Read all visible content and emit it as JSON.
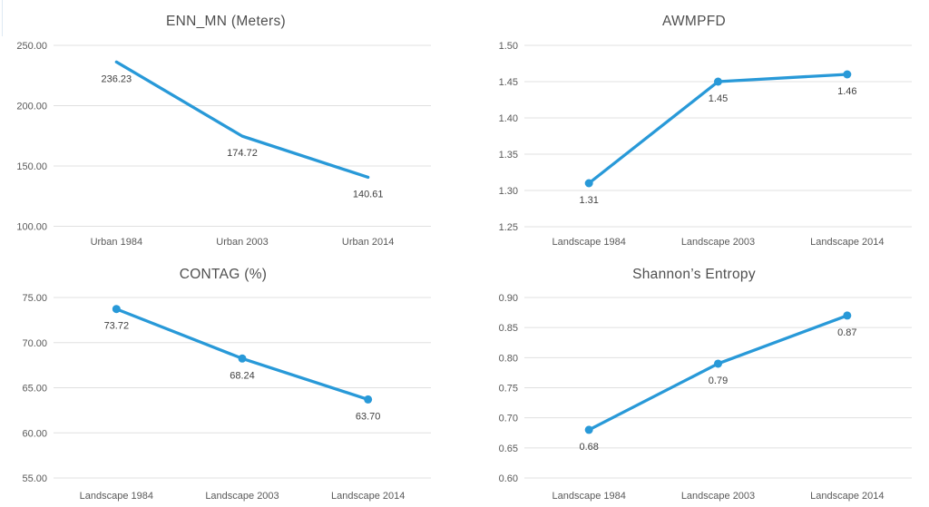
{
  "page": {
    "background": "#ffffff",
    "description_layout": "2x2 grid of line charts"
  },
  "colors": {
    "accent_line": "#2899D8",
    "marker_fill": "#2899D8",
    "gridline": "#E0E0E0",
    "tick_text": "#595959",
    "data_label_text": "#404040",
    "title_text": "#4F4F4F",
    "edge_artifact_blue": "#D6E4F0"
  },
  "chart_data": [
    {
      "type": "line",
      "title": "ENN_MN (Meters)",
      "categories": [
        "Urban 1984",
        "Urban 2003",
        "Urban 2014"
      ],
      "values": [
        236.23,
        174.72,
        140.61
      ],
      "data_labels": [
        "236.23",
        "174.72",
        "140.61"
      ],
      "ylim": [
        100,
        250
      ],
      "yticks": [
        "100.00",
        "150.00",
        "200.00",
        "250.00"
      ],
      "markers": false,
      "grid": true,
      "legend": "none",
      "xlabel": "",
      "ylabel": ""
    },
    {
      "type": "line",
      "title": "AWMPFD",
      "categories": [
        "Landscape 1984",
        "Landscape 2003",
        "Landscape 2014"
      ],
      "values": [
        1.31,
        1.45,
        1.46
      ],
      "data_labels": [
        "1.31",
        "1.45",
        "1.46"
      ],
      "ylim": [
        1.25,
        1.5
      ],
      "yticks": [
        "1.25",
        "1.30",
        "1.35",
        "1.40",
        "1.45",
        "1.50"
      ],
      "markers": true,
      "grid": true,
      "legend": "none",
      "xlabel": "",
      "ylabel": ""
    },
    {
      "type": "line",
      "title": "CONTAG (%)",
      "categories": [
        "Landscape 1984",
        "Landscape 2003",
        "Landscape 2014"
      ],
      "values": [
        73.72,
        68.24,
        63.7
      ],
      "data_labels": [
        "73.72",
        "68.24",
        "63.70"
      ],
      "ylim": [
        55,
        75
      ],
      "yticks": [
        "55.00",
        "60.00",
        "65.00",
        "70.00",
        "75.00"
      ],
      "markers": true,
      "grid": true,
      "legend": "none",
      "xlabel": "",
      "ylabel": ""
    },
    {
      "type": "line",
      "title": "Shannon’s Entropy",
      "categories": [
        "Landscape 1984",
        "Landscape 2003",
        "Landscape 2014"
      ],
      "values": [
        0.68,
        0.79,
        0.87
      ],
      "data_labels": [
        "0.68",
        "0.79",
        "0.87"
      ],
      "ylim": [
        0.6,
        0.9
      ],
      "yticks": [
        "0.60",
        "0.65",
        "0.70",
        "0.75",
        "0.80",
        "0.85",
        "0.90"
      ],
      "markers": true,
      "grid": true,
      "legend": "none",
      "xlabel": "",
      "ylabel": ""
    }
  ]
}
